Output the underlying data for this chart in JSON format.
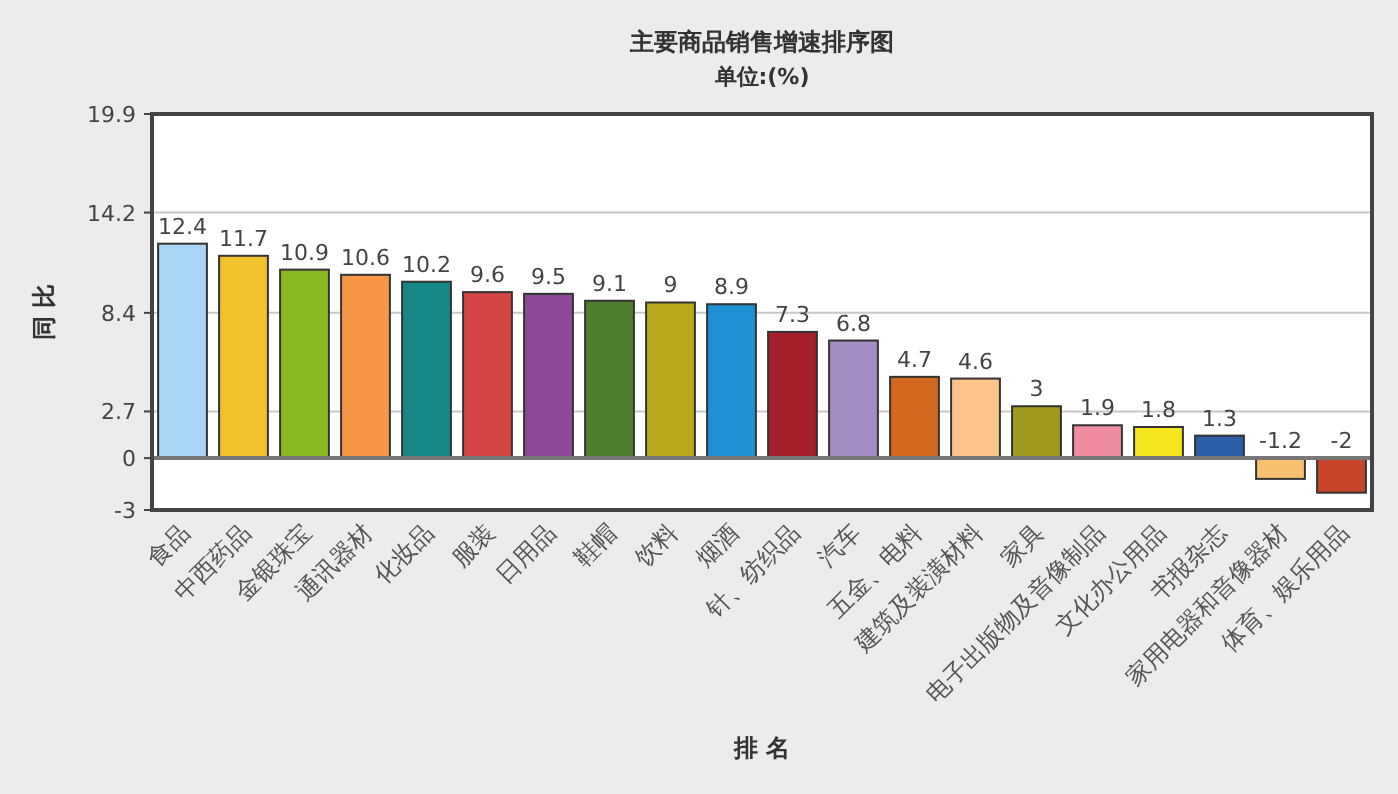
{
  "chart_data": {
    "type": "bar",
    "title": "主要商品销售增速排序图",
    "subtitle": "单位:(%)",
    "ylabel": "同 比",
    "xlabel": "排 名",
    "categories": [
      "食品",
      "中西药品",
      "金银珠宝",
      "通讯器材",
      "化妆品",
      "服装",
      "日用品",
      "鞋帽",
      "饮料",
      "烟酒",
      "针、纺织品",
      "汽车",
      "五金、电料",
      "建筑及装潢材料",
      "家具",
      "电子出版物及音像制品",
      "文化办公用品",
      "书报杂志",
      "家用电器和音像器材",
      "体育、娱乐用品"
    ],
    "values": [
      12.4,
      11.7,
      10.9,
      10.6,
      10.2,
      9.6,
      9.5,
      9.1,
      9,
      8.9,
      7.3,
      6.8,
      4.7,
      4.6,
      3,
      1.9,
      1.8,
      1.3,
      -1.2,
      -2
    ],
    "colors": [
      "#a8d4f5",
      "#f2c12e",
      "#8ab820",
      "#f79646",
      "#17888a",
      "#d64545",
      "#8c4a96",
      "#4e7f2e",
      "#b8a81a",
      "#1f8fd6",
      "#a31f2a",
      "#a48cc4",
      "#d2691e",
      "#fcc48a",
      "#a09a1e",
      "#f08ca0",
      "#f5e61e",
      "#2a5fa8",
      "#f8c070",
      "#c8452a"
    ],
    "ylim": [
      -3,
      19.9
    ],
    "yticks": [
      -3,
      0,
      2.7,
      8.4,
      14.2,
      19.9
    ],
    "grid": "y",
    "data_labels": true
  }
}
